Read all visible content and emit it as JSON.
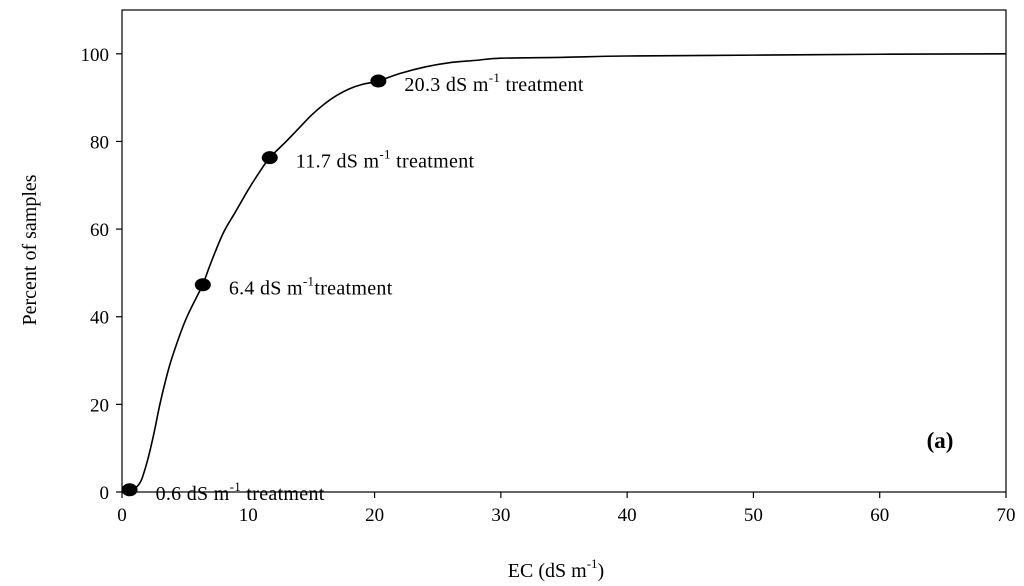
{
  "chart_data": {
    "type": "line",
    "xlabel": {
      "main": "EC (dS m",
      "sup": "-1",
      "tail": ")"
    },
    "ylabel": "Percent of samples",
    "xlim": [
      0,
      70
    ],
    "ylim": [
      0,
      110
    ],
    "xticks": [
      0,
      10,
      20,
      30,
      40,
      50,
      60,
      70
    ],
    "yticks": [
      0,
      20,
      40,
      60,
      80,
      100
    ],
    "grid": false,
    "panel_label": "(a)",
    "series": [
      {
        "x": [
          0.6,
          1,
          1.5,
          2,
          2.5,
          3,
          3.5,
          4,
          5,
          6,
          6.4,
          7,
          8,
          9,
          10,
          11,
          11.7,
          13,
          14,
          15,
          16,
          17,
          18,
          19,
          20.3,
          22,
          24,
          26,
          28,
          30,
          35,
          40,
          50,
          60,
          70
        ],
        "y": [
          0.5,
          0.8,
          2.5,
          7,
          13,
          20,
          26,
          31,
          39,
          45,
          47.3,
          52,
          59,
          64,
          69,
          73.5,
          76.3,
          80,
          83,
          86,
          88.5,
          90.5,
          92,
          93,
          93.8,
          95.5,
          97,
          98,
          98.5,
          99,
          99.2,
          99.5,
          99.7,
          99.9,
          100
        ]
      }
    ],
    "markers": [
      {
        "x": 0.6,
        "y": 0.5,
        "label": {
          "pre": "0.6 dS m",
          "sup": "-1",
          "post": " treatment"
        }
      },
      {
        "x": 6.4,
        "y": 47.3,
        "label": {
          "pre": "6.4 dS m",
          "sup": "-1",
          "post": "treatment"
        }
      },
      {
        "x": 11.7,
        "y": 76.3,
        "label": {
          "pre": "11.7 dS m",
          "sup": "-1",
          "post": " treatment"
        }
      },
      {
        "x": 20.3,
        "y": 93.8,
        "label": {
          "pre": "20.3 dS m",
          "sup": "-1",
          "post": " treatment"
        }
      }
    ]
  }
}
